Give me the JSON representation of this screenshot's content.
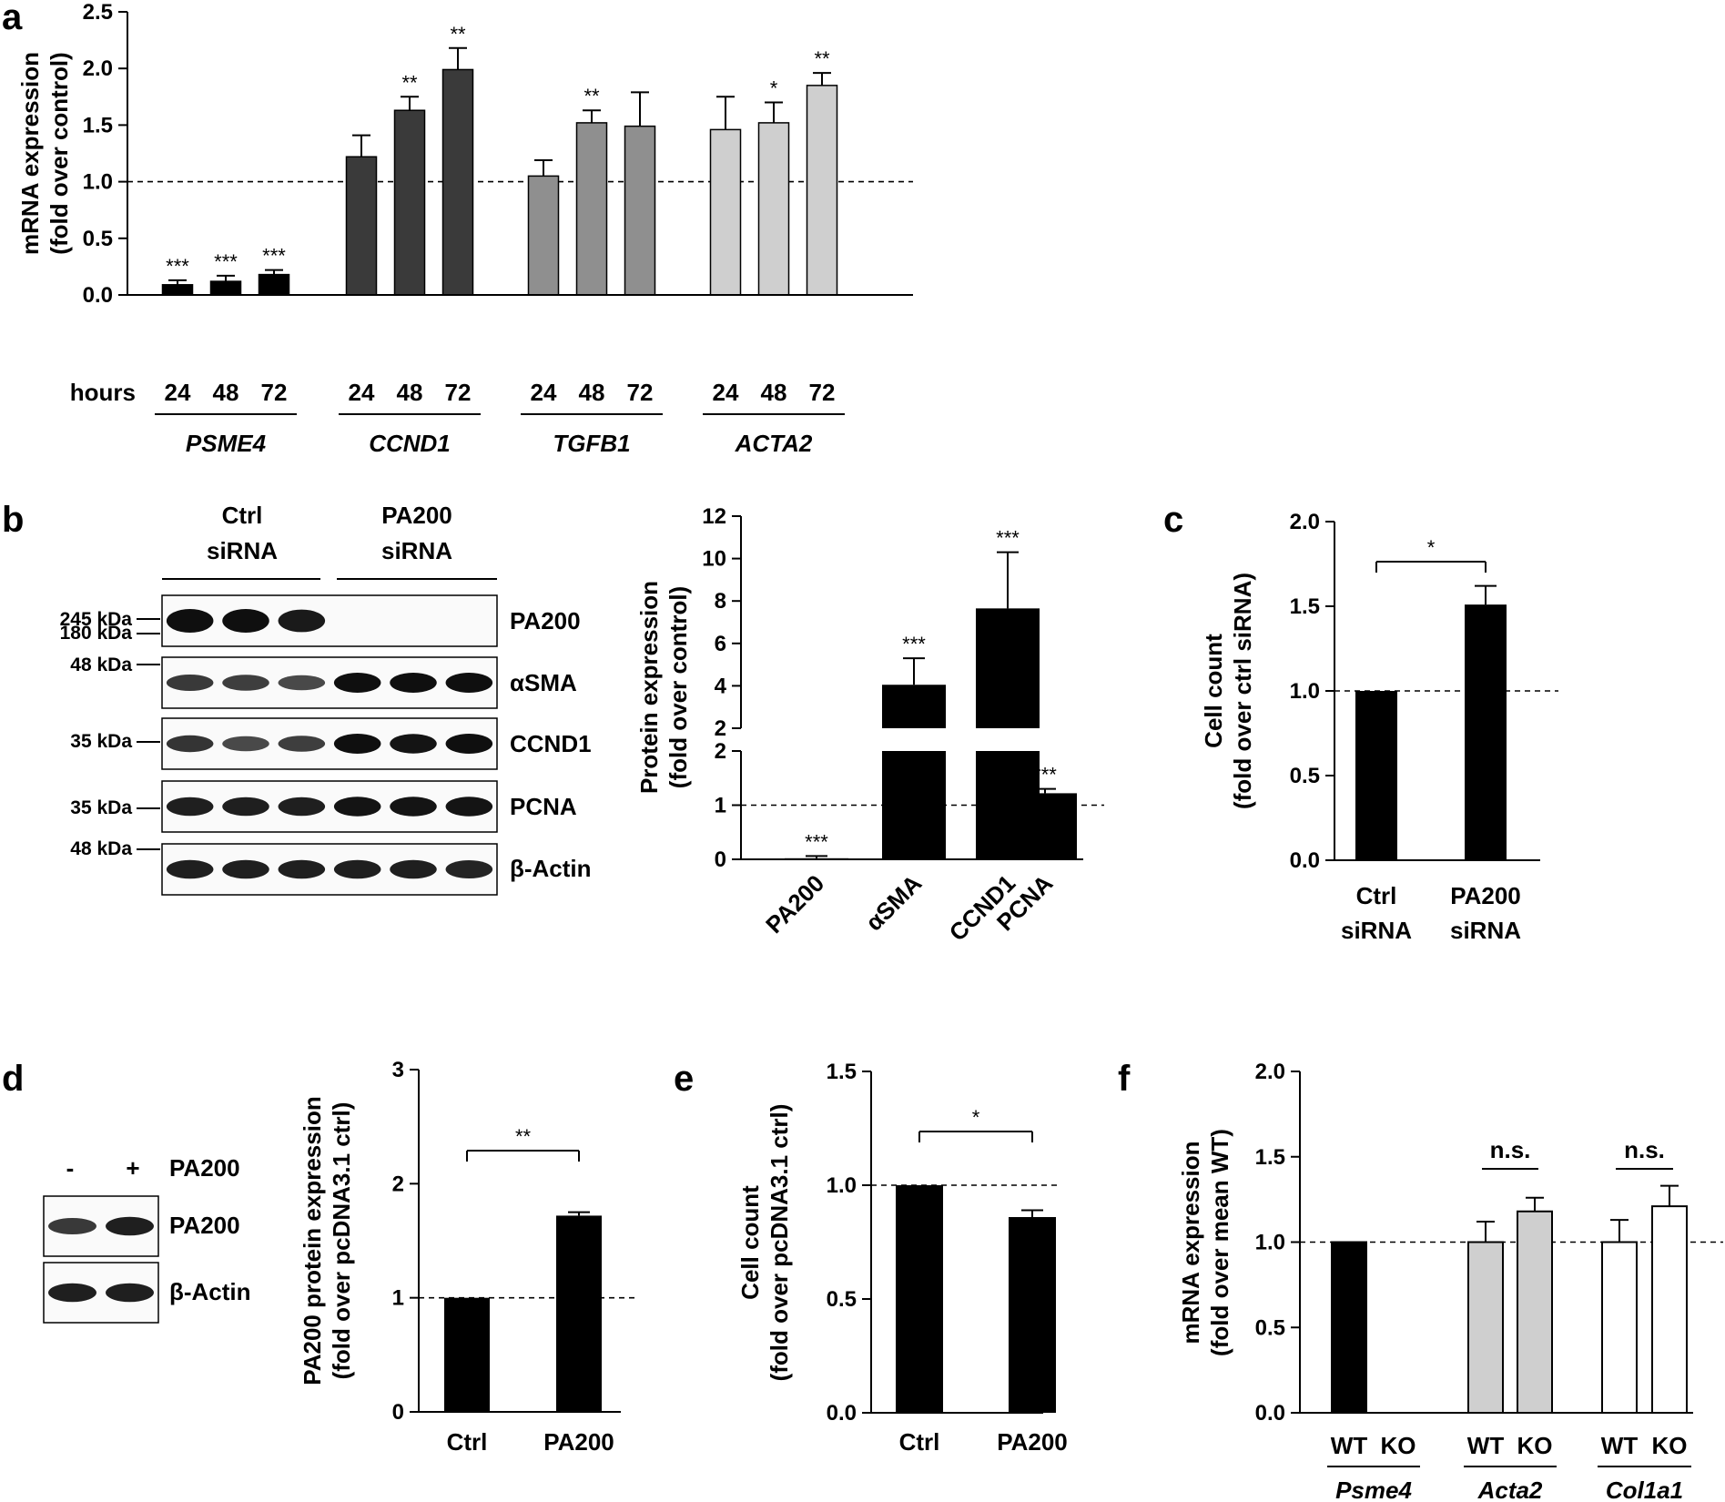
{
  "colors": {
    "black": "#000000",
    "dark": "#3a3a3a",
    "mid": "#8f8f8f",
    "light": "#cfcfcf",
    "white": "#ffffff"
  },
  "panels": {
    "a": "a",
    "b": "b",
    "c": "c",
    "d": "d",
    "e": "e",
    "f": "f"
  },
  "chart_data": [
    {
      "id": "a",
      "type": "bar",
      "ylabel_line1": "mRNA expression",
      "ylabel_line2": "(fold over control)",
      "ylim": [
        0,
        2.5
      ],
      "yticks": [
        "0.0",
        "0.5",
        "1.0",
        "1.5",
        "2.0",
        "2.5"
      ],
      "reference_line": 1.0,
      "xlabel_prefix": "hours",
      "groups": [
        {
          "gene": "PSME4",
          "color": "#000000",
          "bars": [
            {
              "label": "24",
              "value": 0.09,
              "err": 0.04,
              "sig": "***"
            },
            {
              "label": "48",
              "value": 0.12,
              "err": 0.05,
              "sig": "***"
            },
            {
              "label": "72",
              "value": 0.18,
              "err": 0.04,
              "sig": "***"
            }
          ]
        },
        {
          "gene": "CCND1",
          "color": "#3a3a3a",
          "bars": [
            {
              "label": "24",
              "value": 1.22,
              "err": 0.19,
              "sig": ""
            },
            {
              "label": "48",
              "value": 1.63,
              "err": 0.12,
              "sig": "**"
            },
            {
              "label": "72",
              "value": 1.99,
              "err": 0.19,
              "sig": "**"
            }
          ]
        },
        {
          "gene": "TGFB1",
          "color": "#8f8f8f",
          "bars": [
            {
              "label": "24",
              "value": 1.05,
              "err": 0.14,
              "sig": ""
            },
            {
              "label": "48",
              "value": 1.52,
              "err": 0.11,
              "sig": "**"
            },
            {
              "label": "72",
              "value": 1.49,
              "err": 0.3,
              "sig": ""
            }
          ]
        },
        {
          "gene": "ACTA2",
          "color": "#cfcfcf",
          "bars": [
            {
              "label": "24",
              "value": 1.46,
              "err": 0.29,
              "sig": ""
            },
            {
              "label": "48",
              "value": 1.52,
              "err": 0.18,
              "sig": "*"
            },
            {
              "label": "72",
              "value": 1.85,
              "err": 0.11,
              "sig": "**"
            }
          ]
        }
      ]
    },
    {
      "id": "b",
      "type": "bar",
      "ylabel_line1": "Protein expression",
      "ylabel_line2": "(fold over control)",
      "broken_axis": true,
      "lower_ticks": [
        "0",
        "1",
        "2"
      ],
      "upper_ticks": [
        "2",
        "4",
        "6",
        "8",
        "10",
        "12"
      ],
      "reference_line": 1,
      "categories": [
        "PA200",
        "αSMA",
        "CCND1",
        "PCNA"
      ],
      "values": [
        0.02,
        4.05,
        7.65,
        1.22
      ],
      "errors": [
        0.04,
        1.25,
        2.65,
        0.08
      ],
      "sig": [
        "***",
        "***",
        "***",
        "***"
      ]
    },
    {
      "id": "c",
      "type": "bar",
      "ylabel_line1": "Cell count",
      "ylabel_line2": "(fold over ctrl siRNA)",
      "ylim": [
        0,
        2.0
      ],
      "yticks": [
        "0.0",
        "0.5",
        "1.0",
        "1.5",
        "2.0"
      ],
      "reference_line": 1.0,
      "categories": [
        [
          "Ctrl",
          "siRNA"
        ],
        [
          "PA200",
          "siRNA"
        ]
      ],
      "values": [
        1.0,
        1.51
      ],
      "errors": [
        0,
        0.11
      ],
      "bracket_sig": "*"
    },
    {
      "id": "d",
      "type": "bar",
      "ylabel_line1": "PA200 protein expression",
      "ylabel_line2": "(fold over pcDNA3.1 ctrl)",
      "ylim": [
        0,
        3
      ],
      "yticks": [
        "0",
        "1",
        "2",
        "3"
      ],
      "reference_line": 1,
      "categories": [
        "Ctrl",
        "PA200"
      ],
      "values": [
        1.0,
        1.72
      ],
      "errors": [
        0,
        0.03
      ],
      "bracket_sig": "**"
    },
    {
      "id": "e",
      "type": "bar",
      "ylabel_line1": "Cell count",
      "ylabel_line2": "(fold over pcDNA3.1 ctrl)",
      "ylim": [
        0,
        1.5
      ],
      "yticks": [
        "0.0",
        "0.5",
        "1.0",
        "1.5"
      ],
      "reference_line": 1.0,
      "categories": [
        "Ctrl",
        "PA200"
      ],
      "values": [
        1.0,
        0.86
      ],
      "errors": [
        0,
        0.03
      ],
      "bracket_sig": "*"
    },
    {
      "id": "f",
      "type": "bar",
      "ylabel_line1": "mRNA expression",
      "ylabel_line2": "(fold over mean WT)",
      "ylim": [
        0,
        2.0
      ],
      "yticks": [
        "0.0",
        "0.5",
        "1.0",
        "1.5",
        "2.0"
      ],
      "reference_line": 1.0,
      "groups": [
        {
          "gene": "Psme4",
          "color": "#000000",
          "sig": "",
          "bars": [
            {
              "label": "WT",
              "value": 1.0,
              "err": 0
            },
            {
              "label": "KO",
              "value": 0.0,
              "err": 0
            }
          ]
        },
        {
          "gene": "Acta2",
          "color": "#cfcfcf",
          "sig": "n.s.",
          "bars": [
            {
              "label": "WT",
              "value": 1.0,
              "err": 0.12
            },
            {
              "label": "KO",
              "value": 1.18,
              "err": 0.08
            }
          ]
        },
        {
          "gene": "Col1a1",
          "color": "#ffffff",
          "sig": "n.s.",
          "bars": [
            {
              "label": "WT",
              "value": 1.0,
              "err": 0.13
            },
            {
              "label": "KO",
              "value": 1.21,
              "err": 0.12
            }
          ]
        }
      ]
    }
  ],
  "blots": {
    "b": {
      "ctrl_header": [
        "Ctrl",
        "siRNA"
      ],
      "pa200_header": [
        "PA200",
        "siRNA"
      ],
      "kda": [
        "245 kDa",
        "180 kDa",
        "48 kDa",
        "35 kDa",
        "35 kDa",
        "48 kDa"
      ],
      "rows": [
        {
          "label": "PA200",
          "intensities": [
            1.0,
            1.0,
            0.9,
            0,
            0,
            0
          ]
        },
        {
          "label": "αSMA",
          "intensities": [
            0.6,
            0.55,
            0.45,
            1.0,
            1.0,
            1.0
          ]
        },
        {
          "label": "CCND1",
          "intensities": [
            0.65,
            0.45,
            0.55,
            1.0,
            0.95,
            1.0
          ]
        },
        {
          "label": "PCNA",
          "intensities": [
            0.85,
            0.85,
            0.85,
            0.95,
            0.95,
            0.95
          ]
        },
        {
          "label": "β-Actin",
          "intensities": [
            0.85,
            0.85,
            0.85,
            0.85,
            0.85,
            0.8
          ]
        }
      ]
    },
    "d": {
      "minus": "-",
      "plus": "+",
      "header_label": "PA200",
      "rows": [
        {
          "label": "PA200",
          "intensities": [
            0.6,
            0.85
          ]
        },
        {
          "label": "β-Actin",
          "intensities": [
            0.85,
            0.85
          ]
        }
      ]
    }
  }
}
